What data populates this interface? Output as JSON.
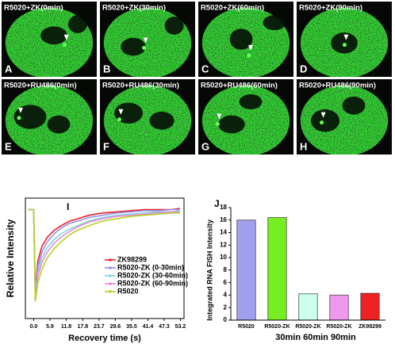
{
  "panels": [
    {
      "label": "R5020+ZK(0min)",
      "letter": "A"
    },
    {
      "label": "R5020+ZK(30min)",
      "letter": "B"
    },
    {
      "label": "R5020+ZK(60min)",
      "letter": "C"
    },
    {
      "label": "R5020+ZK(90min)",
      "letter": "D"
    },
    {
      "label": "R5020+RU486(0min)",
      "letter": "E"
    },
    {
      "label": "R5020+RU486(30min)",
      "letter": "F"
    },
    {
      "label": "R5020+RU486(60min)",
      "letter": "G"
    },
    {
      "label": "R5020+RU486(90min)",
      "letter": "H"
    }
  ],
  "chart_data": [
    {
      "type": "line",
      "panel_label": "I",
      "xlabel": "Recovery time (s)",
      "ylabel": "Relative Intensity",
      "x": [
        -2,
        -1,
        0,
        0.6,
        1.5,
        3,
        5,
        7.5,
        10,
        13,
        16,
        20,
        25,
        30,
        35,
        40,
        45,
        50,
        53
      ],
      "xlim": [
        -3,
        54.5
      ],
      "xticks": [
        {
          "value": 0,
          "label": "0.0"
        },
        5.9,
        11.8,
        17.8,
        23.7,
        29.6,
        35.5,
        41.4,
        47.3,
        53.2
      ],
      "ylim": [
        0.05,
        1.1
      ],
      "series": [
        {
          "name": "ZK98299",
          "color": "#e8202a",
          "values": [
            1.0,
            1.0,
            1.0,
            0.3,
            0.55,
            0.68,
            0.76,
            0.82,
            0.86,
            0.9,
            0.92,
            0.95,
            0.97,
            0.98,
            0.99,
            1.0,
            1.0,
            1.0,
            1.01
          ]
        },
        {
          "name": "R5020-ZK (0-30min)",
          "color": "#9a8fe0",
          "values": [
            1.0,
            1.0,
            1.0,
            0.28,
            0.5,
            0.63,
            0.72,
            0.79,
            0.84,
            0.88,
            0.9,
            0.93,
            0.95,
            0.97,
            0.98,
            0.99,
            0.99,
            1.0,
            1.0
          ]
        },
        {
          "name": "R5020-ZK (30-60min)",
          "color": "#7fd8d8",
          "values": [
            1.0,
            1.0,
            1.0,
            0.25,
            0.45,
            0.58,
            0.67,
            0.74,
            0.79,
            0.83,
            0.86,
            0.9,
            0.93,
            0.95,
            0.96,
            0.97,
            0.98,
            0.98,
            0.99
          ]
        },
        {
          "name": "R5020-ZK (60-90min)",
          "color": "#ee88dd",
          "values": [
            1.0,
            1.0,
            1.0,
            0.22,
            0.42,
            0.54,
            0.63,
            0.71,
            0.76,
            0.81,
            0.85,
            0.89,
            0.92,
            0.94,
            0.95,
            0.96,
            0.97,
            0.98,
            0.98
          ]
        },
        {
          "name": "R5020",
          "color": "#b6d020",
          "values": [
            1.0,
            1.0,
            1.0,
            0.2,
            0.36,
            0.48,
            0.58,
            0.66,
            0.72,
            0.78,
            0.82,
            0.86,
            0.9,
            0.92,
            0.94,
            0.95,
            0.96,
            0.97,
            0.97
          ]
        }
      ]
    },
    {
      "type": "bar",
      "panel_label": "J",
      "ylabel": "Integrated RNA FISH Intensity",
      "annotation": "30min 60min 90min",
      "categories": [
        "R5020",
        "R5020-ZK",
        "R5020-ZK",
        "R5020-ZK",
        "ZK98299"
      ],
      "values": [
        16,
        16.4,
        4.2,
        4,
        4.3
      ],
      "colors": [
        "#a0a0ee",
        "#77ee22",
        "#ccffee",
        "#ee99ee",
        "#ee2222"
      ],
      "ylim": [
        0,
        18
      ],
      "yticks": [
        0,
        2,
        4,
        6,
        8,
        10,
        12,
        14,
        16,
        18
      ]
    }
  ]
}
